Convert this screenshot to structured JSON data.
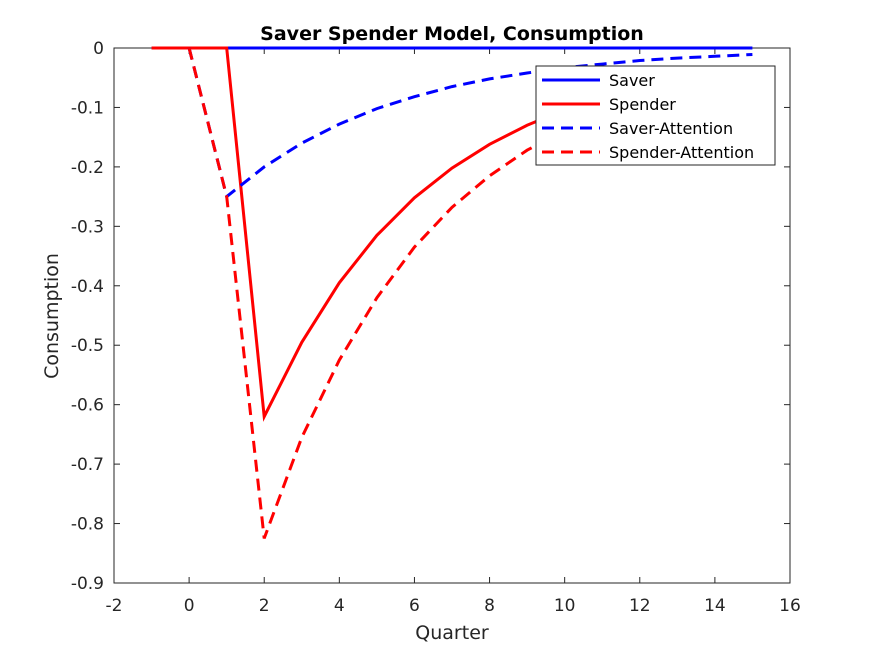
{
  "chart_data": {
    "type": "line",
    "title": "Saver Spender Model, Consumption",
    "xlabel": "Quarter",
    "ylabel": "Consumption",
    "xlim": [
      -2,
      16
    ],
    "ylim": [
      -0.9,
      0
    ],
    "xticks": [
      "-2",
      "0",
      "2",
      "4",
      "6",
      "8",
      "10",
      "12",
      "14",
      "16"
    ],
    "yticks": [
      "0",
      "-0.1",
      "-0.2",
      "-0.3",
      "-0.4",
      "-0.5",
      "-0.6",
      "-0.7",
      "-0.8",
      "-0.9"
    ],
    "grid": false,
    "legend_position": "top-right",
    "series": [
      {
        "name": "Saver",
        "color": "#0000ff",
        "style": "solid",
        "x": [
          -1,
          0,
          1,
          2,
          3,
          4,
          5,
          6,
          7,
          8,
          9,
          10,
          11,
          12,
          13,
          14,
          15
        ],
        "y": [
          0,
          0,
          0,
          0,
          0,
          0,
          0,
          0,
          0,
          0,
          0,
          0,
          0,
          0,
          0,
          0,
          0
        ]
      },
      {
        "name": "Spender",
        "color": "#ff0000",
        "style": "solid",
        "x": [
          -1,
          0,
          1,
          2,
          3,
          4,
          5,
          6,
          7,
          8,
          9,
          10,
          11,
          12,
          13,
          14,
          15
        ],
        "y": [
          0,
          0,
          0,
          -0.62,
          -0.495,
          -0.395,
          -0.315,
          -0.252,
          -0.202,
          -0.162,
          -0.13,
          -0.104,
          -0.083,
          -0.066,
          -0.053,
          -0.042,
          -0.034
        ]
      },
      {
        "name": "Saver-Attention",
        "color": "#0000ff",
        "style": "dashed",
        "x": [
          0,
          1,
          2,
          3,
          4,
          5,
          6,
          7,
          8,
          9,
          10,
          11,
          12,
          13,
          14,
          15
        ],
        "y": [
          0,
          -0.25,
          -0.2,
          -0.16,
          -0.128,
          -0.102,
          -0.082,
          -0.065,
          -0.052,
          -0.042,
          -0.033,
          -0.027,
          -0.021,
          -0.017,
          -0.014,
          -0.011
        ]
      },
      {
        "name": "Spender-Attention",
        "color": "#ff0000",
        "style": "dashed",
        "x": [
          0,
          1,
          2,
          3,
          4,
          5,
          6,
          7,
          8,
          9,
          10,
          11,
          12,
          13,
          14,
          15
        ],
        "y": [
          0,
          -0.25,
          -0.825,
          -0.655,
          -0.525,
          -0.42,
          -0.335,
          -0.268,
          -0.215,
          -0.172,
          -0.138,
          -0.11,
          -0.088,
          -0.07,
          -0.056,
          -0.045
        ]
      }
    ]
  }
}
